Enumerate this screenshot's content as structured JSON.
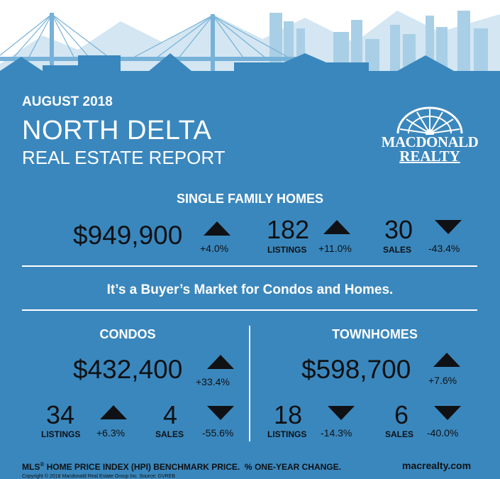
{
  "header": {
    "month": "AUGUST 2018",
    "area": "NORTH DELTA",
    "report": "REAL ESTATE REPORT"
  },
  "brand": {
    "line1": "MACDONALD",
    "line2": "REALTY"
  },
  "single_family": {
    "title": "SINGLE FAMILY HOMES",
    "price": "$949,900",
    "price_change": "+4.0%",
    "price_trend": "up",
    "listings": "182",
    "listings_label": "LISTINGS",
    "listings_change": "+11.0%",
    "listings_trend": "up",
    "sales": "30",
    "sales_label": "SALES",
    "sales_change": "-43.4%",
    "sales_trend": "down"
  },
  "market_message": "It’s a Buyer’s Market for Condos and Homes.",
  "condos": {
    "title": "CONDOS",
    "price": "$432,400",
    "price_change": "+33.4%",
    "price_trend": "up",
    "listings": "34",
    "listings_label": "LISTINGS",
    "listings_change": "+6.3%",
    "listings_trend": "up",
    "sales": "4",
    "sales_label": "SALES",
    "sales_change": "-55.6%",
    "sales_trend": "down"
  },
  "townhomes": {
    "title": "TOWNHOMES",
    "price": "$598,700",
    "price_change": "+7.6%",
    "price_trend": "up",
    "listings": "18",
    "listings_label": "LISTINGS",
    "listings_change": "-14.3%",
    "listings_trend": "down",
    "sales": "6",
    "sales_label": "SALES",
    "sales_change": "-40.0%",
    "sales_trend": "down"
  },
  "footer": {
    "note_prefix": "MLS",
    "note_reg": "®",
    "note_rest": " HOME PRICE INDEX (HPI) BENCHMARK PRICE.  % ONE-YEAR CHANGE.",
    "website": "macrealty.com",
    "copyright": "Copyright © 2018 Macdonald Real Estate Group Inc. Source: GVREB"
  },
  "colors": {
    "background": "#3a87bd",
    "header_band": "#2f7bb2",
    "text_dark": "#0f1114",
    "skyline_light": "#a9cfe6",
    "skyline_mid": "#76b1d8",
    "trend_up": "#0f1114",
    "trend_down": "#0f1114"
  }
}
